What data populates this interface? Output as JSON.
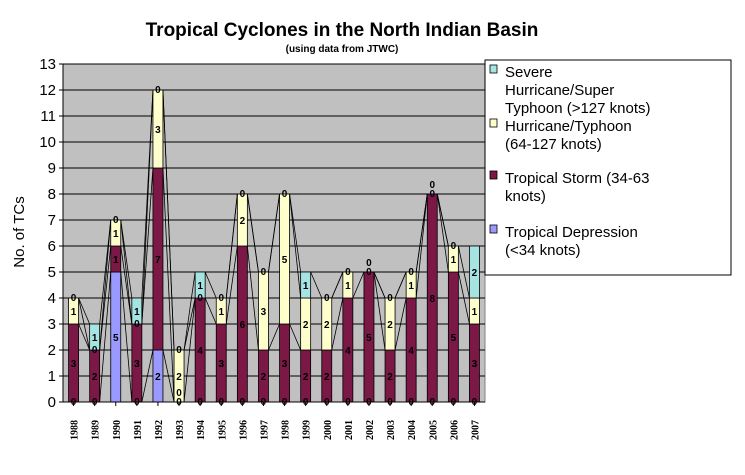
{
  "chart_data": {
    "type": "bar",
    "stacked": true,
    "title": "Tropical Cyclones in the North Indian Basin",
    "subtitle": "(using data from JTWC)",
    "ylabel": "No. of TCs",
    "xlabel": "",
    "ylim": [
      0,
      13
    ],
    "yticks": [
      0,
      1,
      2,
      3,
      4,
      5,
      6,
      7,
      8,
      9,
      10,
      11,
      12,
      13
    ],
    "grid": true,
    "legend_position": "right",
    "categories": [
      "1988",
      "1989",
      "1990",
      "1991",
      "1992",
      "1993",
      "1994",
      "1995",
      "1996",
      "1997",
      "1998",
      "1999",
      "2000",
      "2001",
      "2002",
      "2003",
      "2004",
      "2005",
      "2006",
      "2007"
    ],
    "series": [
      {
        "name": "Tropical Depression (<34 knots)",
        "color": "#9999ff",
        "values": [
          0,
          0,
          5,
          0,
          2,
          0,
          0,
          0,
          0,
          0,
          0,
          0,
          0,
          0,
          0,
          0,
          0,
          0,
          0,
          0
        ]
      },
      {
        "name": "Tropical Storm (34-63 knots)",
        "color": "#7b1845",
        "values": [
          3,
          2,
          1,
          3,
          7,
          0,
          4,
          3,
          6,
          2,
          3,
          2,
          2,
          4,
          5,
          2,
          4,
          8,
          5,
          3
        ]
      },
      {
        "name": "Hurricane/Typhoon (64-127 knots)",
        "color": "#ffffcc",
        "values": [
          1,
          0,
          1,
          0,
          3,
          2,
          0,
          1,
          2,
          3,
          5,
          2,
          2,
          1,
          0,
          2,
          1,
          0,
          1,
          1
        ]
      },
      {
        "name": "Severe Hurricane/Super Typhoon (>127 knots)",
        "color": "#a6e4e4",
        "values": [
          0,
          1,
          0,
          1,
          0,
          0,
          1,
          0,
          0,
          0,
          0,
          1,
          0,
          0,
          0,
          0,
          0,
          0,
          0,
          2
        ]
      }
    ],
    "legend": [
      {
        "color": "#a6e4e4",
        "lines": [
          "Severe",
          "Hurricane/Super",
          "Typhoon (>127 knots)"
        ]
      },
      {
        "color": "#ffffcc",
        "lines": [
          "Hurricane/Typhoon",
          "(64-127 knots)"
        ]
      },
      {
        "color": "#7b1845",
        "lines": [
          "Tropical Storm (34-63",
          "knots)"
        ]
      },
      {
        "color": "#9999ff",
        "lines": [
          "Tropical Depression",
          "(<34 knots)"
        ]
      }
    ],
    "plot_background": "#c0c0c0"
  }
}
